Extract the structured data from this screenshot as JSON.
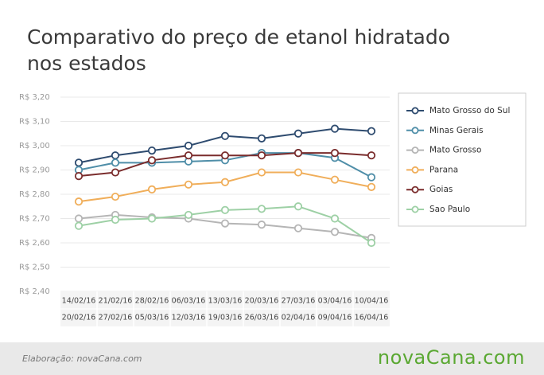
{
  "chart_data": {
    "type": "line",
    "title": "Comparativo do preço de etanol hidratado nos estados",
    "source": "Elaboração: novaCana.com",
    "logo": "novaCana.com",
    "categories": [
      "14/02/16",
      "21/02/16",
      "28/02/16",
      "06/03/16",
      "13/03/16",
      "20/03/16",
      "27/03/16",
      "03/04/16",
      "10/04/16"
    ],
    "categories_end": [
      "20/02/16",
      "27/02/16",
      "05/03/16",
      "12/03/16",
      "19/03/16",
      "26/03/16",
      "02/04/16",
      "09/04/16",
      "16/04/16"
    ],
    "ylim": [
      2.4,
      3.2
    ],
    "yticks": [
      {
        "value": 2.4,
        "label": "R$ 2,40"
      },
      {
        "value": 2.5,
        "label": "R$ 2,50"
      },
      {
        "value": 2.6,
        "label": "R$ 2,60"
      },
      {
        "value": 2.7,
        "label": "R$ 2,70"
      },
      {
        "value": 2.8,
        "label": "R$ 2,80"
      },
      {
        "value": 2.9,
        "label": "R$ 2,90"
      },
      {
        "value": 3.0,
        "label": "R$ 3,00"
      },
      {
        "value": 3.1,
        "label": "R$ 3,10"
      },
      {
        "value": 3.2,
        "label": "R$ 3,20"
      }
    ],
    "grid": true,
    "legend": "right",
    "series": [
      {
        "name": "Mato Grosso do Sul",
        "color": "#2e4b6f",
        "values": [
          2.93,
          2.96,
          2.98,
          3.0,
          3.04,
          3.03,
          3.05,
          3.07,
          3.06
        ]
      },
      {
        "name": "Minas Gerais",
        "color": "#4f8ea8",
        "values": [
          2.9,
          2.93,
          2.93,
          2.935,
          2.94,
          2.97,
          2.97,
          2.95,
          2.87
        ]
      },
      {
        "name": "Mato Grosso",
        "color": "#b5b5b5",
        "values": [
          2.7,
          2.715,
          2.705,
          2.7,
          2.68,
          2.675,
          2.66,
          2.645,
          2.62
        ]
      },
      {
        "name": "Parana",
        "color": "#f0ae5a",
        "values": [
          2.77,
          2.79,
          2.82,
          2.84,
          2.85,
          2.89,
          2.89,
          2.86,
          2.83
        ]
      },
      {
        "name": "Goias",
        "color": "#7a2c2c",
        "values": [
          2.875,
          2.89,
          2.94,
          2.96,
          2.96,
          2.96,
          2.97,
          2.97,
          2.96
        ]
      },
      {
        "name": "Sao Paulo",
        "color": "#9dd0a5",
        "values": [
          2.67,
          2.695,
          2.7,
          2.715,
          2.735,
          2.74,
          2.75,
          2.7,
          2.6
        ]
      }
    ]
  }
}
